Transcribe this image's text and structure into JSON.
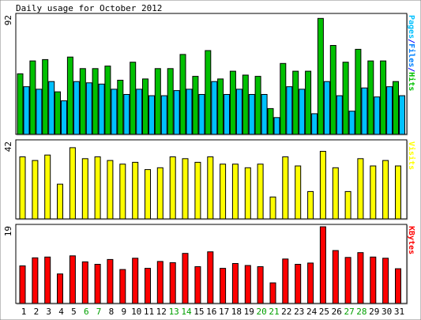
{
  "chart_data": {
    "type": "bar",
    "title": "Daily usage for October 2012",
    "categories": [
      "1",
      "2",
      "3",
      "4",
      "5",
      "6",
      "7",
      "8",
      "9",
      "10",
      "11",
      "12",
      "13",
      "14",
      "15",
      "16",
      "17",
      "18",
      "19",
      "20",
      "21",
      "22",
      "23",
      "24",
      "25",
      "26",
      "27",
      "28",
      "29",
      "30",
      "31"
    ],
    "weekend_days": [
      "6",
      "7",
      "13",
      "14",
      "20",
      "21",
      "27",
      "28"
    ],
    "panels": [
      {
        "id": "pages-files-hits",
        "ymax_label": "92",
        "ymax": 92,
        "legend": [
          {
            "text": "Pages",
            "color": "#00c0ff"
          },
          {
            "text": "/",
            "color": "#0000ff"
          },
          {
            "text": "Files",
            "color": "#0080ff"
          },
          {
            "text": "/",
            "color": "#0000ff"
          },
          {
            "text": "Hits",
            "color": "#00c000"
          }
        ],
        "series": [
          {
            "name": "Hits",
            "color": "#00c000",
            "values": [
              47,
              57,
              58,
              33,
              60,
              51,
              51,
              53,
              42,
              56,
              43,
              51,
              51,
              62,
              45,
              65,
              43,
              49,
              46,
              45,
              20,
              55,
              49,
              49,
              90,
              69,
              56,
              66,
              57,
              57,
              41
            ]
          },
          {
            "name": "Files",
            "color": "#0080ff",
            "values": [
              0,
              0,
              0,
              0,
              0,
              0,
              0,
              0,
              0,
              0,
              0,
              0,
              0,
              0,
              0,
              0,
              0,
              0,
              0,
              0,
              0,
              0,
              0,
              0,
              0,
              0,
              0,
              0,
              0,
              0,
              0
            ]
          },
          {
            "name": "Pages",
            "color": "#00c0ff",
            "values": [
              37,
              35,
              41,
              26,
              41,
              40,
              39,
              35,
              31,
              35,
              30,
              30,
              34,
              35,
              31,
              41,
              31,
              35,
              31,
              31,
              13,
              37,
              35,
              16,
              41,
              30,
              18,
              36,
              29,
              37,
              30
            ]
          }
        ]
      },
      {
        "id": "visits",
        "ymax_label": "42",
        "ymax": 42,
        "legend": [
          {
            "text": "Visits",
            "color": "#ffff00"
          }
        ],
        "series": [
          {
            "name": "Visits",
            "color": "#ffff00",
            "values": [
              34,
              32,
              35,
              19,
              39,
              33,
              34,
              32,
              30,
              31,
              27,
              28,
              34,
              33,
              31,
              34,
              30,
              30,
              28,
              30,
              12,
              34,
              29,
              15,
              37,
              28,
              15,
              33,
              29,
              32,
              29
            ]
          }
        ]
      },
      {
        "id": "kbytes",
        "ymax_label": "19",
        "ymax": 19,
        "legend": [
          {
            "text": "KBytes",
            "color": "#ff0000"
          }
        ],
        "series": [
          {
            "name": "KBytes",
            "color": "#ff0000",
            "values": [
              9.3,
              11.3,
              11.5,
              7.3,
              11.8,
              10.3,
              9.7,
              10.9,
              8.4,
              11.2,
              8.7,
              10.4,
              10.1,
              12.4,
              9.1,
              12.8,
              8.7,
              9.9,
              9.4,
              9.1,
              5.1,
              11.0,
              9.7,
              10.0,
              19.0,
              13.1,
              11.4,
              12.6,
              11.5,
              11.2,
              8.6
            ]
          }
        ]
      }
    ]
  },
  "colors": {
    "background": "#ffffff",
    "panel_fill": "#ffffff",
    "weekday_label": "#000000",
    "weekend_label": "#00a000"
  }
}
